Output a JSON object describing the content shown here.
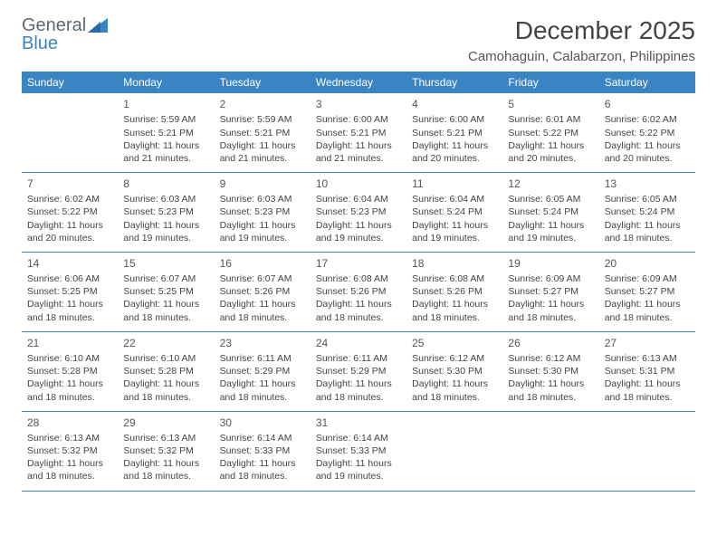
{
  "brand": {
    "word1": "General",
    "word2": "Blue"
  },
  "title": "December 2025",
  "location": "Camohaguin, Calabarzon, Philippines",
  "colors": {
    "accent": "#3a84c4",
    "text": "#444444",
    "muted": "#5a6a78",
    "background": "#ffffff"
  },
  "dayHeaders": [
    "Sunday",
    "Monday",
    "Tuesday",
    "Wednesday",
    "Thursday",
    "Friday",
    "Saturday"
  ],
  "weeks": [
    [
      null,
      {
        "n": "1",
        "sr": "Sunrise: 5:59 AM",
        "ss": "Sunset: 5:21 PM",
        "dl": "Daylight: 11 hours and 21 minutes."
      },
      {
        "n": "2",
        "sr": "Sunrise: 5:59 AM",
        "ss": "Sunset: 5:21 PM",
        "dl": "Daylight: 11 hours and 21 minutes."
      },
      {
        "n": "3",
        "sr": "Sunrise: 6:00 AM",
        "ss": "Sunset: 5:21 PM",
        "dl": "Daylight: 11 hours and 21 minutes."
      },
      {
        "n": "4",
        "sr": "Sunrise: 6:00 AM",
        "ss": "Sunset: 5:21 PM",
        "dl": "Daylight: 11 hours and 20 minutes."
      },
      {
        "n": "5",
        "sr": "Sunrise: 6:01 AM",
        "ss": "Sunset: 5:22 PM",
        "dl": "Daylight: 11 hours and 20 minutes."
      },
      {
        "n": "6",
        "sr": "Sunrise: 6:02 AM",
        "ss": "Sunset: 5:22 PM",
        "dl": "Daylight: 11 hours and 20 minutes."
      }
    ],
    [
      {
        "n": "7",
        "sr": "Sunrise: 6:02 AM",
        "ss": "Sunset: 5:22 PM",
        "dl": "Daylight: 11 hours and 20 minutes."
      },
      {
        "n": "8",
        "sr": "Sunrise: 6:03 AM",
        "ss": "Sunset: 5:23 PM",
        "dl": "Daylight: 11 hours and 19 minutes."
      },
      {
        "n": "9",
        "sr": "Sunrise: 6:03 AM",
        "ss": "Sunset: 5:23 PM",
        "dl": "Daylight: 11 hours and 19 minutes."
      },
      {
        "n": "10",
        "sr": "Sunrise: 6:04 AM",
        "ss": "Sunset: 5:23 PM",
        "dl": "Daylight: 11 hours and 19 minutes."
      },
      {
        "n": "11",
        "sr": "Sunrise: 6:04 AM",
        "ss": "Sunset: 5:24 PM",
        "dl": "Daylight: 11 hours and 19 minutes."
      },
      {
        "n": "12",
        "sr": "Sunrise: 6:05 AM",
        "ss": "Sunset: 5:24 PM",
        "dl": "Daylight: 11 hours and 19 minutes."
      },
      {
        "n": "13",
        "sr": "Sunrise: 6:05 AM",
        "ss": "Sunset: 5:24 PM",
        "dl": "Daylight: 11 hours and 18 minutes."
      }
    ],
    [
      {
        "n": "14",
        "sr": "Sunrise: 6:06 AM",
        "ss": "Sunset: 5:25 PM",
        "dl": "Daylight: 11 hours and 18 minutes."
      },
      {
        "n": "15",
        "sr": "Sunrise: 6:07 AM",
        "ss": "Sunset: 5:25 PM",
        "dl": "Daylight: 11 hours and 18 minutes."
      },
      {
        "n": "16",
        "sr": "Sunrise: 6:07 AM",
        "ss": "Sunset: 5:26 PM",
        "dl": "Daylight: 11 hours and 18 minutes."
      },
      {
        "n": "17",
        "sr": "Sunrise: 6:08 AM",
        "ss": "Sunset: 5:26 PM",
        "dl": "Daylight: 11 hours and 18 minutes."
      },
      {
        "n": "18",
        "sr": "Sunrise: 6:08 AM",
        "ss": "Sunset: 5:26 PM",
        "dl": "Daylight: 11 hours and 18 minutes."
      },
      {
        "n": "19",
        "sr": "Sunrise: 6:09 AM",
        "ss": "Sunset: 5:27 PM",
        "dl": "Daylight: 11 hours and 18 minutes."
      },
      {
        "n": "20",
        "sr": "Sunrise: 6:09 AM",
        "ss": "Sunset: 5:27 PM",
        "dl": "Daylight: 11 hours and 18 minutes."
      }
    ],
    [
      {
        "n": "21",
        "sr": "Sunrise: 6:10 AM",
        "ss": "Sunset: 5:28 PM",
        "dl": "Daylight: 11 hours and 18 minutes."
      },
      {
        "n": "22",
        "sr": "Sunrise: 6:10 AM",
        "ss": "Sunset: 5:28 PM",
        "dl": "Daylight: 11 hours and 18 minutes."
      },
      {
        "n": "23",
        "sr": "Sunrise: 6:11 AM",
        "ss": "Sunset: 5:29 PM",
        "dl": "Daylight: 11 hours and 18 minutes."
      },
      {
        "n": "24",
        "sr": "Sunrise: 6:11 AM",
        "ss": "Sunset: 5:29 PM",
        "dl": "Daylight: 11 hours and 18 minutes."
      },
      {
        "n": "25",
        "sr": "Sunrise: 6:12 AM",
        "ss": "Sunset: 5:30 PM",
        "dl": "Daylight: 11 hours and 18 minutes."
      },
      {
        "n": "26",
        "sr": "Sunrise: 6:12 AM",
        "ss": "Sunset: 5:30 PM",
        "dl": "Daylight: 11 hours and 18 minutes."
      },
      {
        "n": "27",
        "sr": "Sunrise: 6:13 AM",
        "ss": "Sunset: 5:31 PM",
        "dl": "Daylight: 11 hours and 18 minutes."
      }
    ],
    [
      {
        "n": "28",
        "sr": "Sunrise: 6:13 AM",
        "ss": "Sunset: 5:32 PM",
        "dl": "Daylight: 11 hours and 18 minutes."
      },
      {
        "n": "29",
        "sr": "Sunrise: 6:13 AM",
        "ss": "Sunset: 5:32 PM",
        "dl": "Daylight: 11 hours and 18 minutes."
      },
      {
        "n": "30",
        "sr": "Sunrise: 6:14 AM",
        "ss": "Sunset: 5:33 PM",
        "dl": "Daylight: 11 hours and 18 minutes."
      },
      {
        "n": "31",
        "sr": "Sunrise: 6:14 AM",
        "ss": "Sunset: 5:33 PM",
        "dl": "Daylight: 11 hours and 19 minutes."
      },
      null,
      null,
      null
    ]
  ]
}
